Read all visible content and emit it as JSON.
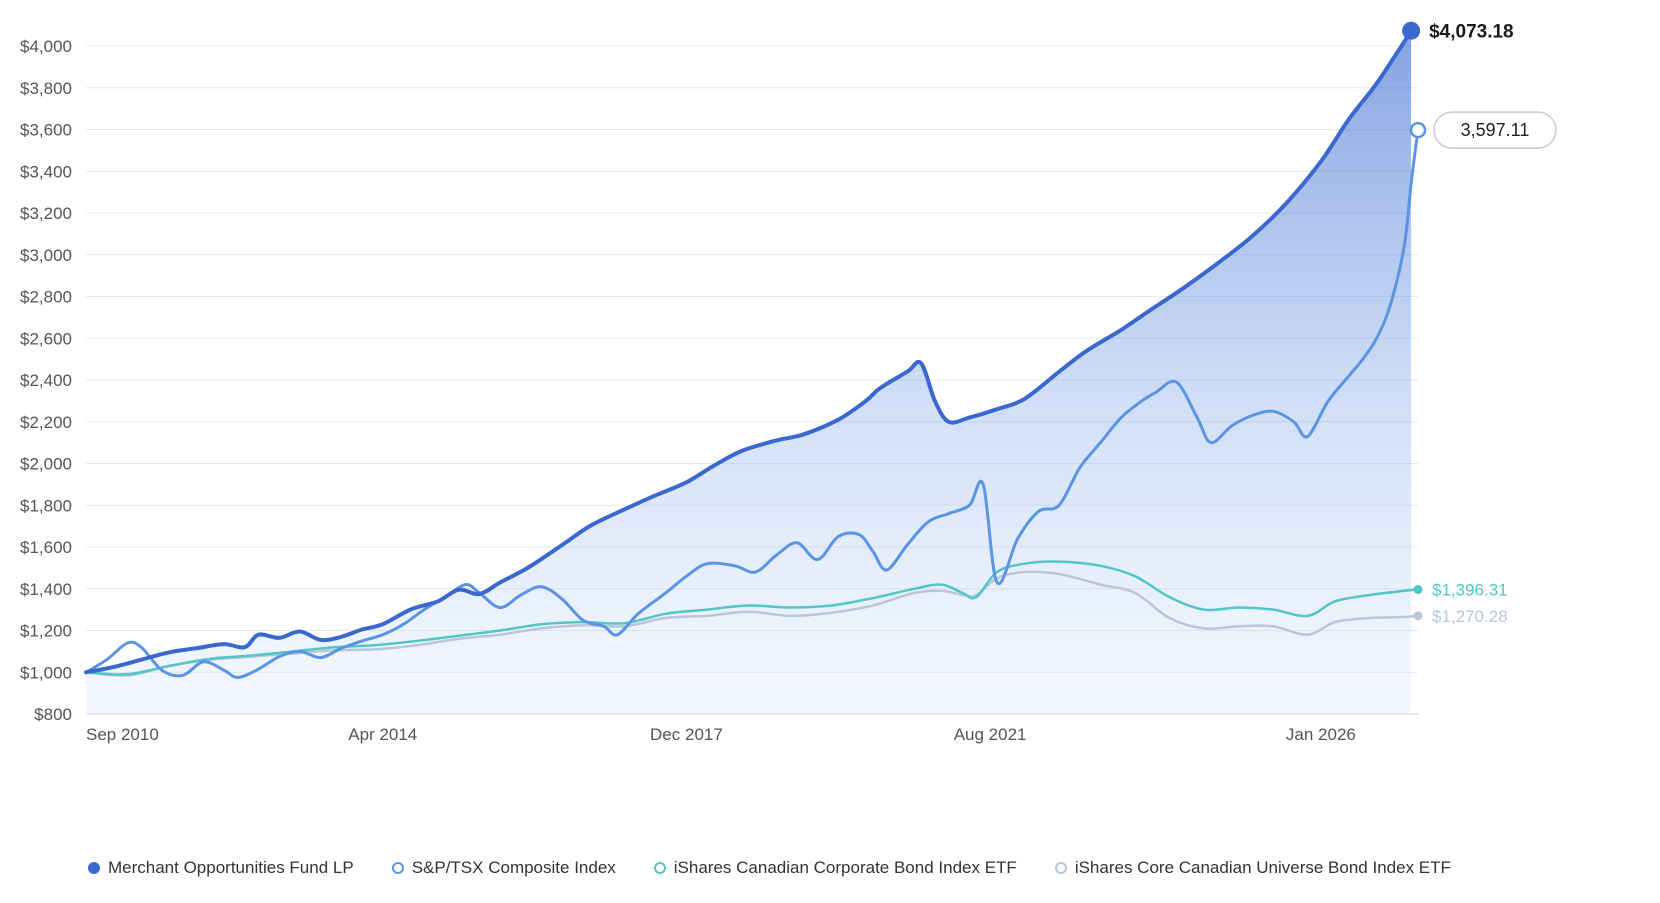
{
  "chart_data": {
    "type": "area",
    "title": "",
    "xlabel": "",
    "ylabel": "",
    "ylim": [
      800,
      4000
    ],
    "yticks": [
      "$800",
      "$1,000",
      "$1,200",
      "$1,400",
      "$1,600",
      "$1,800",
      "$2,000",
      "$2,200",
      "$2,400",
      "$2,600",
      "$2,800",
      "$3,000",
      "$3,200",
      "$3,400",
      "$3,600",
      "$3,800",
      "$4,000"
    ],
    "xticks": [
      "Sep 2010",
      "Apr 2014",
      "Dec 2017",
      "Aug 2021",
      "Jan 2026"
    ],
    "x_range": [
      "2010-09",
      "2026-01"
    ],
    "grid": true,
    "legend_position": "bottom-left",
    "series": [
      {
        "name": "Merchant Opportunities Fund LP",
        "color": "#3a68cf",
        "marker": "filled",
        "filled_area": true,
        "end_label": "$4,073.18",
        "points": [
          [
            "2010-09",
            1000
          ],
          [
            "2011-01",
            1025
          ],
          [
            "2011-05",
            1060
          ],
          [
            "2011-09",
            1095
          ],
          [
            "2012-01",
            1115
          ],
          [
            "2012-05",
            1135
          ],
          [
            "2012-08",
            1120
          ],
          [
            "2012-10",
            1180
          ],
          [
            "2013-01",
            1165
          ],
          [
            "2013-04",
            1195
          ],
          [
            "2013-07",
            1155
          ],
          [
            "2013-10",
            1170
          ],
          [
            "2014-01",
            1205
          ],
          [
            "2014-04",
            1230
          ],
          [
            "2014-08",
            1300
          ],
          [
            "2014-12",
            1340
          ],
          [
            "2015-03",
            1395
          ],
          [
            "2015-06",
            1375
          ],
          [
            "2015-09",
            1430
          ],
          [
            "2016-01",
            1500
          ],
          [
            "2016-06",
            1610
          ],
          [
            "2016-10",
            1700
          ],
          [
            "2017-03",
            1780
          ],
          [
            "2017-07",
            1840
          ],
          [
            "2017-12",
            1910
          ],
          [
            "2018-04",
            1990
          ],
          [
            "2018-08",
            2060
          ],
          [
            "2019-01",
            2110
          ],
          [
            "2019-05",
            2140
          ],
          [
            "2019-10",
            2210
          ],
          [
            "2020-02",
            2300
          ],
          [
            "2020-04",
            2360
          ],
          [
            "2020-08",
            2440
          ],
          [
            "2020-10",
            2480
          ],
          [
            "2020-12",
            2300
          ],
          [
            "2021-02",
            2200
          ],
          [
            "2021-05",
            2220
          ],
          [
            "2021-09",
            2260
          ],
          [
            "2022-01",
            2310
          ],
          [
            "2022-06",
            2440
          ],
          [
            "2022-10",
            2540
          ],
          [
            "2023-03",
            2640
          ],
          [
            "2023-07",
            2730
          ],
          [
            "2023-12",
            2840
          ],
          [
            "2024-05",
            2960
          ],
          [
            "2024-10",
            3090
          ],
          [
            "2025-03",
            3250
          ],
          [
            "2025-08",
            3450
          ],
          [
            "2025-12",
            3650
          ],
          [
            "2026-04",
            3820
          ],
          [
            "2026-08",
            4020
          ],
          [
            "2026-09",
            4073.18
          ]
        ]
      },
      {
        "name": "S&P/TSX Composite Index",
        "color": "#5a94e2",
        "marker": "hollow",
        "filled_area": false,
        "end_label": "3,597.11",
        "points": [
          [
            "2010-09",
            1000
          ],
          [
            "2010-12",
            1060
          ],
          [
            "2011-03",
            1140
          ],
          [
            "2011-05",
            1120
          ],
          [
            "2011-08",
            1010
          ],
          [
            "2011-11",
            985
          ],
          [
            "2012-02",
            1050
          ],
          [
            "2012-05",
            1010
          ],
          [
            "2012-07",
            975
          ],
          [
            "2012-10",
            1015
          ],
          [
            "2013-01",
            1075
          ],
          [
            "2013-04",
            1100
          ],
          [
            "2013-07",
            1070
          ],
          [
            "2013-10",
            1115
          ],
          [
            "2014-01",
            1150
          ],
          [
            "2014-04",
            1180
          ],
          [
            "2014-07",
            1230
          ],
          [
            "2014-10",
            1300
          ],
          [
            "2015-01",
            1360
          ],
          [
            "2015-04",
            1420
          ],
          [
            "2015-06",
            1380
          ],
          [
            "2015-09",
            1310
          ],
          [
            "2015-12",
            1370
          ],
          [
            "2016-03",
            1410
          ],
          [
            "2016-06",
            1350
          ],
          [
            "2016-09",
            1250
          ],
          [
            "2016-12",
            1220
          ],
          [
            "2017-02",
            1180
          ],
          [
            "2017-05",
            1280
          ],
          [
            "2017-09",
            1380
          ],
          [
            "2017-12",
            1460
          ],
          [
            "2018-03",
            1520
          ],
          [
            "2018-07",
            1510
          ],
          [
            "2018-10",
            1480
          ],
          [
            "2019-01",
            1560
          ],
          [
            "2019-04",
            1620
          ],
          [
            "2019-07",
            1540
          ],
          [
            "2019-10",
            1650
          ],
          [
            "2020-01",
            1660
          ],
          [
            "2020-03",
            1580
          ],
          [
            "2020-05",
            1490
          ],
          [
            "2020-08",
            1610
          ],
          [
            "2020-11",
            1720
          ],
          [
            "2021-02",
            1760
          ],
          [
            "2021-05",
            1800
          ],
          [
            "2021-07",
            1900
          ],
          [
            "2021-09",
            1430
          ],
          [
            "2021-12",
            1640
          ],
          [
            "2022-03",
            1770
          ],
          [
            "2022-06",
            1800
          ],
          [
            "2022-09",
            1980
          ],
          [
            "2022-12",
            2100
          ],
          [
            "2023-03",
            2220
          ],
          [
            "2023-06",
            2300
          ],
          [
            "2023-08",
            2340
          ],
          [
            "2023-11",
            2390
          ],
          [
            "2024-02",
            2220
          ],
          [
            "2024-04",
            2100
          ],
          [
            "2024-07",
            2180
          ],
          [
            "2024-10",
            2230
          ],
          [
            "2025-01",
            2250
          ],
          [
            "2025-04",
            2200
          ],
          [
            "2025-06",
            2130
          ],
          [
            "2025-09",
            2300
          ],
          [
            "2025-12",
            2420
          ],
          [
            "2026-02",
            2500
          ],
          [
            "2026-04",
            2600
          ],
          [
            "2026-06",
            2760
          ],
          [
            "2026-08",
            3040
          ],
          [
            "2026-09",
            3340
          ],
          [
            "2026-10",
            3597.11
          ]
        ]
      },
      {
        "name": "iShares Canadian Corporate Bond Index ETF",
        "color": "#52c6c6",
        "marker": "filled",
        "filled_area": false,
        "end_label": "$1,396.31",
        "points": [
          [
            "2010-09",
            1000
          ],
          [
            "2011-03",
            990
          ],
          [
            "2011-09",
            1030
          ],
          [
            "2012-03",
            1065
          ],
          [
            "2012-09",
            1080
          ],
          [
            "2013-03",
            1100
          ],
          [
            "2013-09",
            1120
          ],
          [
            "2014-03",
            1130
          ],
          [
            "2014-09",
            1150
          ],
          [
            "2015-03",
            1175
          ],
          [
            "2015-09",
            1200
          ],
          [
            "2016-03",
            1230
          ],
          [
            "2016-09",
            1240
          ],
          [
            "2017-03",
            1235
          ],
          [
            "2017-09",
            1280
          ],
          [
            "2018-03",
            1300
          ],
          [
            "2018-09",
            1320
          ],
          [
            "2019-03",
            1310
          ],
          [
            "2019-09",
            1320
          ],
          [
            "2020-03",
            1355
          ],
          [
            "2020-09",
            1400
          ],
          [
            "2021-01",
            1420
          ],
          [
            "2021-04",
            1380
          ],
          [
            "2021-06",
            1360
          ],
          [
            "2021-09",
            1480
          ],
          [
            "2022-01",
            1520
          ],
          [
            "2022-06",
            1530
          ],
          [
            "2022-12",
            1510
          ],
          [
            "2023-05",
            1460
          ],
          [
            "2023-10",
            1360
          ],
          [
            "2024-03",
            1300
          ],
          [
            "2024-08",
            1310
          ],
          [
            "2025-01",
            1300
          ],
          [
            "2025-06",
            1270
          ],
          [
            "2025-10",
            1340
          ],
          [
            "2026-03",
            1370
          ],
          [
            "2026-08",
            1390
          ],
          [
            "2026-10",
            1396.31
          ]
        ]
      },
      {
        "name": "iShares Core Canadian Universe Bond Index ETF",
        "color": "#b9c7d8",
        "marker": "filled",
        "filled_area": false,
        "end_label": "$1,270.28",
        "points": [
          [
            "2010-09",
            1000
          ],
          [
            "2011-03",
            985
          ],
          [
            "2011-09",
            1030
          ],
          [
            "2012-03",
            1060
          ],
          [
            "2012-09",
            1075
          ],
          [
            "2013-03",
            1090
          ],
          [
            "2013-09",
            1105
          ],
          [
            "2014-03",
            1110
          ],
          [
            "2014-09",
            1130
          ],
          [
            "2015-03",
            1160
          ],
          [
            "2015-09",
            1180
          ],
          [
            "2016-03",
            1210
          ],
          [
            "2016-09",
            1225
          ],
          [
            "2017-03",
            1220
          ],
          [
            "2017-09",
            1260
          ],
          [
            "2018-03",
            1270
          ],
          [
            "2018-09",
            1290
          ],
          [
            "2019-03",
            1270
          ],
          [
            "2019-09",
            1285
          ],
          [
            "2020-03",
            1320
          ],
          [
            "2020-09",
            1380
          ],
          [
            "2021-01",
            1390
          ],
          [
            "2021-04",
            1370
          ],
          [
            "2021-06",
            1370
          ],
          [
            "2021-09",
            1450
          ],
          [
            "2022-01",
            1480
          ],
          [
            "2022-06",
            1470
          ],
          [
            "2022-12",
            1420
          ],
          [
            "2023-05",
            1380
          ],
          [
            "2023-10",
            1260
          ],
          [
            "2024-03",
            1210
          ],
          [
            "2024-08",
            1220
          ],
          [
            "2025-01",
            1220
          ],
          [
            "2025-06",
            1180
          ],
          [
            "2025-10",
            1240
          ],
          [
            "2026-03",
            1260
          ],
          [
            "2026-08",
            1265
          ],
          [
            "2026-10",
            1270.28
          ]
        ]
      }
    ]
  }
}
